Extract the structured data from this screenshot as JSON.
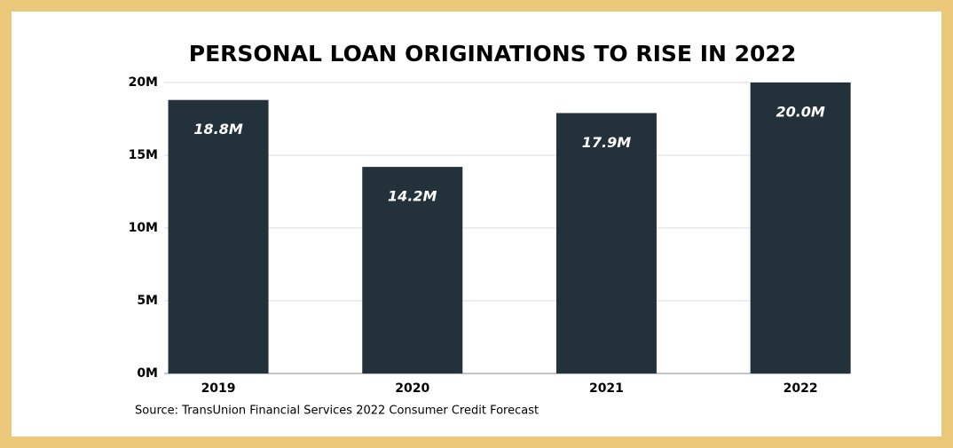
{
  "chart_data": {
    "type": "bar",
    "title": "PERSONAL LOAN ORIGINATIONS TO RISE IN 2022",
    "categories": [
      "2019",
      "2020",
      "2021",
      "2022"
    ],
    "values": [
      18.8,
      14.2,
      17.9,
      20.0
    ],
    "value_labels": [
      "18.8M",
      "14.2M",
      "17.9M",
      "20.0M"
    ],
    "color": "#22313a",
    "ylim": [
      0,
      20
    ],
    "yticks": [
      {
        "value": 0,
        "label": "0M"
      },
      {
        "value": 5,
        "label": "5M"
      },
      {
        "value": 10,
        "label": "10M"
      },
      {
        "value": 15,
        "label": "15M"
      },
      {
        "value": 20,
        "label": "20M"
      }
    ],
    "grid": true,
    "source": "Source: TransUnion Financial Services 2022 Consumer Credit Forecast"
  }
}
